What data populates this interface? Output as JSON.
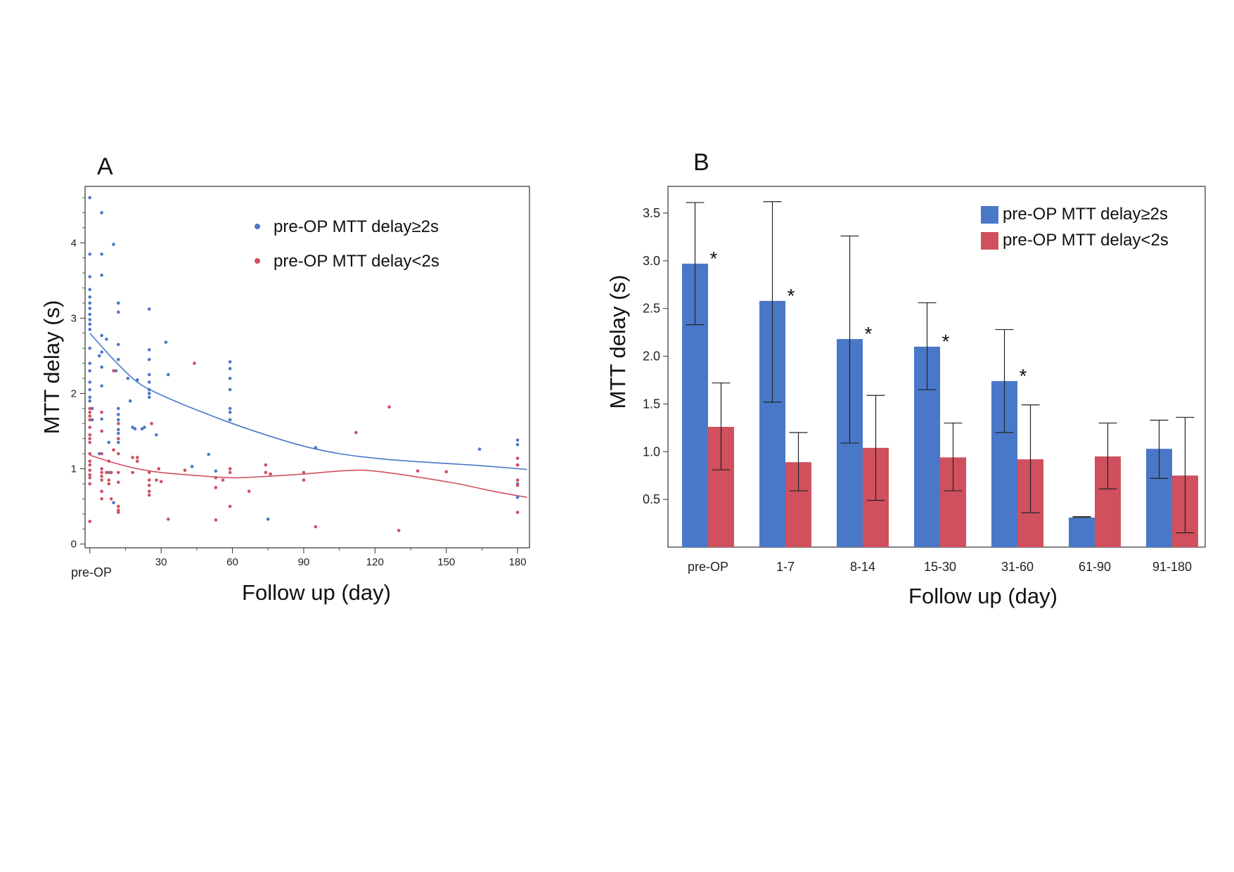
{
  "chart_data": [
    {
      "panel": "A",
      "type": "scatter",
      "xlabel": "Follow up (day)",
      "ylabel": "MTT delay (s)",
      "x_first_tick_label": "pre-OP",
      "xticks": [
        30,
        60,
        90,
        120,
        150,
        180
      ],
      "yticks": [
        0,
        1,
        2,
        3,
        4
      ],
      "xlim": [
        -2,
        185
      ],
      "ylim": [
        -0.05,
        4.75
      ],
      "grid": false,
      "legend_position": "top-right",
      "colors": {
        "high": "#4a78c8",
        "low": "#d0505e"
      },
      "series": [
        {
          "name": "pre-OP MTT delay≥2s",
          "key": "high",
          "points": [
            [
              0,
              4.6
            ],
            [
              0,
              3.85
            ],
            [
              0,
              3.55
            ],
            [
              0,
              3.38
            ],
            [
              0,
              3.28
            ],
            [
              0,
              3.2
            ],
            [
              0,
              3.13
            ],
            [
              0,
              3.05
            ],
            [
              0,
              2.98
            ],
            [
              0,
              2.92
            ],
            [
              0,
              2.85
            ],
            [
              0,
              2.6
            ],
            [
              0,
              2.4
            ],
            [
              0,
              2.3
            ],
            [
              0,
              2.15
            ],
            [
              0,
              2.05
            ],
            [
              0,
              1.95
            ],
            [
              0,
              1.9
            ],
            [
              1,
              1.8
            ],
            [
              1,
              1.65
            ],
            [
              4,
              1.2
            ],
            [
              4,
              2.5
            ],
            [
              5,
              4.4
            ],
            [
              5,
              3.85
            ],
            [
              5,
              3.57
            ],
            [
              5,
              2.77
            ],
            [
              5,
              2.55
            ],
            [
              5,
              2.35
            ],
            [
              5,
              2.1
            ],
            [
              5,
              1.66
            ],
            [
              7,
              2.72
            ],
            [
              8,
              0.95
            ],
            [
              8,
              1.35
            ],
            [
              10,
              3.98
            ],
            [
              10,
              0.55
            ],
            [
              11,
              2.3
            ],
            [
              12,
              3.2
            ],
            [
              12,
              3.08
            ],
            [
              12,
              2.65
            ],
            [
              12,
              2.45
            ],
            [
              12,
              1.8
            ],
            [
              12,
              1.72
            ],
            [
              12,
              1.65
            ],
            [
              12,
              1.52
            ],
            [
              12,
              1.47
            ],
            [
              12,
              1.35
            ],
            [
              16,
              2.2
            ],
            [
              17,
              1.9
            ],
            [
              18,
              1.55
            ],
            [
              19,
              1.53
            ],
            [
              20,
              2.18
            ],
            [
              22,
              1.53
            ],
            [
              23,
              1.55
            ],
            [
              25,
              3.12
            ],
            [
              25,
              2.58
            ],
            [
              25,
              2.45
            ],
            [
              25,
              2.25
            ],
            [
              25,
              2.15
            ],
            [
              25,
              2.05
            ],
            [
              25,
              2.0
            ],
            [
              25,
              1.95
            ],
            [
              28,
              1.45
            ],
            [
              32,
              2.68
            ],
            [
              33,
              2.25
            ],
            [
              43,
              1.03
            ],
            [
              50,
              1.19
            ],
            [
              53,
              0.97
            ],
            [
              59,
              2.42
            ],
            [
              59,
              2.33
            ],
            [
              59,
              2.2
            ],
            [
              59,
              2.05
            ],
            [
              59,
              1.8
            ],
            [
              59,
              1.75
            ],
            [
              59,
              1.65
            ],
            [
              75,
              0.33
            ],
            [
              95,
              1.28
            ],
            [
              164,
              1.26
            ],
            [
              180,
              1.38
            ],
            [
              180,
              1.32
            ],
            [
              180,
              1.05
            ],
            [
              180,
              0.8
            ],
            [
              180,
              0.62
            ]
          ],
          "trend": [
            [
              0,
              2.8
            ],
            [
              10,
              2.45
            ],
            [
              20,
              2.15
            ],
            [
              30,
              1.98
            ],
            [
              45,
              1.78
            ],
            [
              60,
              1.6
            ],
            [
              75,
              1.44
            ],
            [
              90,
              1.3
            ],
            [
              105,
              1.2
            ],
            [
              120,
              1.14
            ],
            [
              135,
              1.1
            ],
            [
              150,
              1.07
            ],
            [
              165,
              1.04
            ],
            [
              184,
              0.99
            ]
          ]
        },
        {
          "name": "pre-OP MTT delay<2s",
          "key": "low",
          "points": [
            [
              0,
              1.8
            ],
            [
              0,
              1.75
            ],
            [
              0,
              1.7
            ],
            [
              0,
              1.65
            ],
            [
              0,
              1.55
            ],
            [
              0,
              1.45
            ],
            [
              0,
              1.4
            ],
            [
              0,
              1.35
            ],
            [
              0,
              1.2
            ],
            [
              0,
              1.1
            ],
            [
              0,
              1.05
            ],
            [
              0,
              0.98
            ],
            [
              0,
              0.92
            ],
            [
              0,
              0.88
            ],
            [
              0,
              0.8
            ],
            [
              0,
              0.3
            ],
            [
              5,
              1.75
            ],
            [
              5,
              1.5
            ],
            [
              5,
              1.2
            ],
            [
              5,
              1.0
            ],
            [
              5,
              0.95
            ],
            [
              5,
              0.9
            ],
            [
              5,
              0.85
            ],
            [
              5,
              0.7
            ],
            [
              5,
              0.6
            ],
            [
              7,
              0.95
            ],
            [
              8,
              1.1
            ],
            [
              8,
              0.85
            ],
            [
              8,
              0.8
            ],
            [
              9,
              0.95
            ],
            [
              9,
              0.6
            ],
            [
              10,
              2.3
            ],
            [
              10,
              1.25
            ],
            [
              12,
              1.6
            ],
            [
              12,
              1.4
            ],
            [
              12,
              1.2
            ],
            [
              12,
              0.95
            ],
            [
              12,
              0.82
            ],
            [
              12,
              0.5
            ],
            [
              12,
              0.45
            ],
            [
              12,
              0.42
            ],
            [
              18,
              0.95
            ],
            [
              18,
              1.15
            ],
            [
              20,
              1.1
            ],
            [
              20,
              1.15
            ],
            [
              25,
              0.95
            ],
            [
              25,
              0.85
            ],
            [
              25,
              0.78
            ],
            [
              25,
              0.7
            ],
            [
              25,
              0.65
            ],
            [
              26,
              1.6
            ],
            [
              28,
              0.85
            ],
            [
              29,
              1.0
            ],
            [
              30,
              0.83
            ],
            [
              33,
              0.33
            ],
            [
              40,
              0.98
            ],
            [
              44,
              2.4
            ],
            [
              53,
              0.88
            ],
            [
              53,
              0.75
            ],
            [
              53,
              0.32
            ],
            [
              56,
              0.85
            ],
            [
              59,
              1.0
            ],
            [
              59,
              0.95
            ],
            [
              59,
              0.5
            ],
            [
              67,
              0.7
            ],
            [
              74,
              1.05
            ],
            [
              74,
              0.95
            ],
            [
              76,
              0.93
            ],
            [
              90,
              0.95
            ],
            [
              90,
              0.85
            ],
            [
              95,
              0.23
            ],
            [
              112,
              1.48
            ],
            [
              126,
              1.82
            ],
            [
              130,
              0.18
            ],
            [
              138,
              0.97
            ],
            [
              150,
              0.96
            ],
            [
              180,
              1.14
            ],
            [
              180,
              1.05
            ],
            [
              180,
              0.85
            ],
            [
              180,
              0.78
            ],
            [
              180,
              0.42
            ]
          ],
          "trend": [
            [
              0,
              1.18
            ],
            [
              10,
              1.08
            ],
            [
              20,
              1.0
            ],
            [
              30,
              0.95
            ],
            [
              45,
              0.91
            ],
            [
              60,
              0.88
            ],
            [
              75,
              0.9
            ],
            [
              90,
              0.93
            ],
            [
              105,
              0.97
            ],
            [
              115,
              0.98
            ],
            [
              125,
              0.95
            ],
            [
              140,
              0.88
            ],
            [
              155,
              0.8
            ],
            [
              170,
              0.7
            ],
            [
              184,
              0.62
            ]
          ]
        }
      ]
    },
    {
      "panel": "B",
      "type": "bar",
      "xlabel": "Follow up (day)",
      "ylabel": "MTT delay (s)",
      "categories": [
        "pre-OP",
        "1-7",
        "8-14",
        "15-30",
        "31-60",
        "61-90",
        "91-180"
      ],
      "yticks": [
        0.5,
        1.0,
        1.5,
        2.0,
        2.5,
        3.0,
        3.5
      ],
      "ylim": [
        0.0,
        3.78
      ],
      "grid": false,
      "legend_position": "top-right",
      "series": [
        {
          "name": "pre-OP MTT delay≥2s",
          "color": "#4a78c8",
          "values": [
            2.97,
            2.58,
            2.18,
            2.1,
            1.74,
            0.31,
            1.03
          ],
          "err_low": [
            2.33,
            1.52,
            1.09,
            1.65,
            1.2,
            0.31,
            0.72
          ],
          "err_high": [
            3.61,
            3.62,
            3.26,
            2.56,
            2.28,
            0.32,
            1.33
          ],
          "significance": [
            "*",
            "*",
            "*",
            "*",
            "*",
            "",
            ""
          ]
        },
        {
          "name": "pre-OP MTT delay<2s",
          "color": "#d0505e",
          "values": [
            1.26,
            0.89,
            1.04,
            0.94,
            0.92,
            0.95,
            0.75
          ],
          "err_low": [
            0.81,
            0.59,
            0.49,
            0.59,
            0.36,
            0.61,
            0.15
          ],
          "err_high": [
            1.72,
            1.2,
            1.59,
            1.3,
            1.49,
            1.3,
            1.36
          ]
        }
      ]
    }
  ],
  "panels": {
    "a_label": "A",
    "b_label": "B"
  }
}
